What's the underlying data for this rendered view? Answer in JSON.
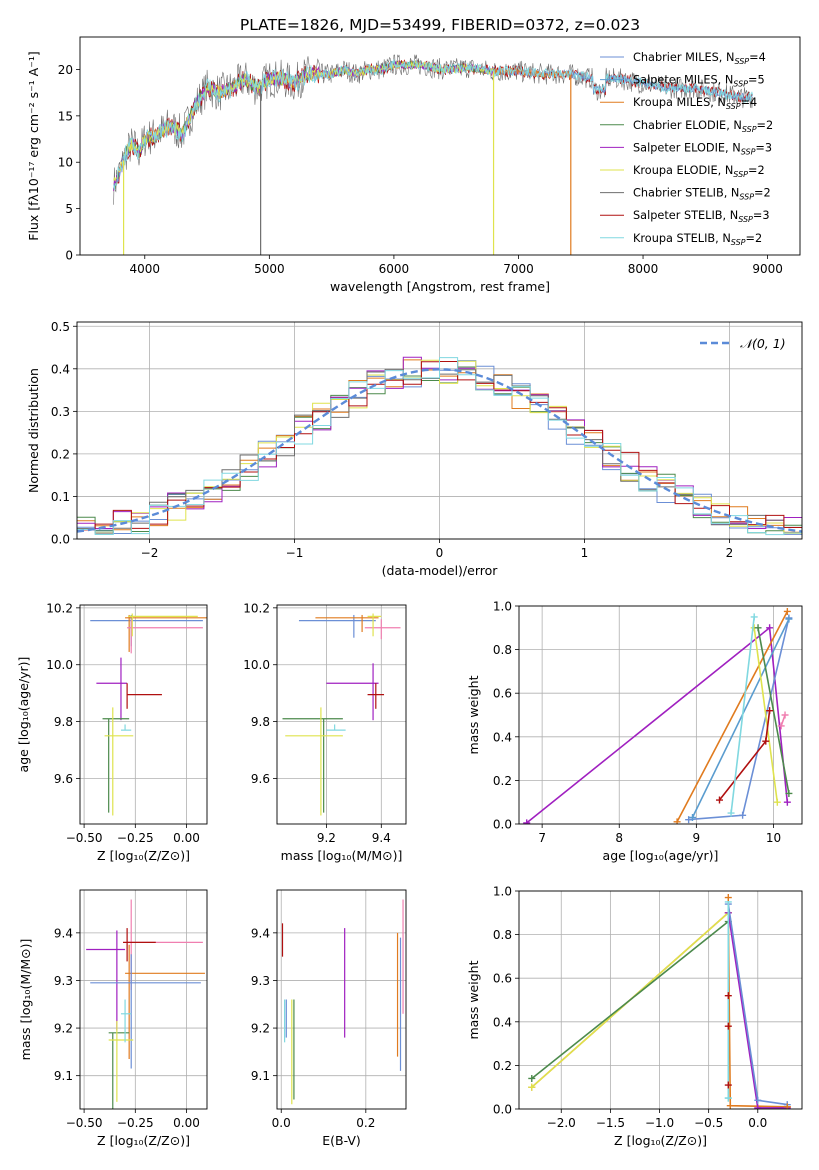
{
  "title": "PLATE=1826, MJD=53499, FIBERID=0372, z=0.023",
  "colors": {
    "Chabrier MILES": "#6b8fd6",
    "Salpeter MILES": "#5a9ccf",
    "Kroupa MILES": "#e07b1f",
    "Chabrier ELODIE": "#4c8a4c",
    "Salpeter ELODIE": "#a020c0",
    "Kroupa ELODIE": "#dfe34d",
    "Chabrier STELIB": "#6e6e6e",
    "Salpeter STELIB": "#b01010",
    "Kroupa STELIB": "#80d8e0",
    "pink": "#f07fb0",
    "gauss": "#5b8bd8"
  },
  "chart_data": [
    {
      "id": "spectrum",
      "type": "line",
      "xlabel": "wavelength [Angstrom, rest frame]",
      "ylabel": "Flux [fλ10⁻¹⁷ erg cm⁻² s⁻¹ A⁻¹]",
      "xlim": [
        3480,
        9260
      ],
      "ylim": [
        0,
        23.5
      ],
      "xticks": [
        4000,
        5000,
        6000,
        7000,
        8000,
        9000
      ],
      "yticks": [
        0,
        5,
        10,
        15,
        20
      ],
      "legend_position": "top-right",
      "envelope": {
        "x": [
          3750,
          3800,
          3850,
          3900,
          3950,
          4000,
          4100,
          4200,
          4300,
          4400,
          4500,
          4600,
          4700,
          4800,
          4900,
          5000,
          5100,
          5200,
          5300,
          5400,
          5500,
          5600,
          5700,
          5800,
          5900,
          6000,
          6200,
          6400,
          6600,
          6800,
          7000,
          7200,
          7400,
          7600,
          7800,
          8000,
          8200,
          8400,
          8600,
          8800
        ],
        "y": [
          7.5,
          9,
          11,
          12,
          11,
          12.5,
          13,
          14,
          13,
          16,
          18,
          17.5,
          18,
          19,
          18,
          19,
          19,
          18.5,
          19.5,
          19.5,
          19.5,
          20,
          19.5,
          20,
          20,
          20.5,
          20.5,
          20,
          20.2,
          19.8,
          19.8,
          19.5,
          19.5,
          19,
          19,
          18.5,
          18,
          18,
          17.5,
          17
        ]
      },
      "legend": [
        {
          "label": "Chabrier MILES, N",
          "sub": "SSP",
          "n": "=4"
        },
        {
          "label": "Salpeter MILES, N",
          "sub": "SSP",
          "n": "=5"
        },
        {
          "label": "Kroupa MILES, N",
          "sub": "SSP",
          "n": "=4"
        },
        {
          "label": "Chabrier ELODIE, N",
          "sub": "SSP",
          "n": "=2"
        },
        {
          "label": "Salpeter ELODIE, N",
          "sub": "SSP",
          "n": "=3"
        },
        {
          "label": "Kroupa ELODIE, N",
          "sub": "SSP",
          "n": "=2"
        },
        {
          "label": "Chabrier STELIB, N",
          "sub": "SSP",
          "n": "=2"
        },
        {
          "label": "Salpeter STELIB, N",
          "sub": "SSP",
          "n": "=3"
        },
        {
          "label": "Kroupa STELIB, N",
          "sub": "SSP",
          "n": "=2"
        }
      ],
      "drops": [
        {
          "x": 4930,
          "series": "Chabrier STELIB"
        },
        {
          "x": 6800,
          "series": "Kroupa ELODIE"
        },
        {
          "x": 7420,
          "series": "Kroupa MILES"
        },
        {
          "x": 3830,
          "series": "Kroupa ELODIE"
        }
      ]
    },
    {
      "id": "residuals",
      "type": "line",
      "xlabel": "(data-model)/error",
      "ylabel": "Normed distribution",
      "xlim": [
        -2.5,
        2.5
      ],
      "ylim": [
        0,
        0.51
      ],
      "xticks": [
        -2,
        -1,
        0,
        1,
        2
      ],
      "yticks": [
        0.0,
        0.1,
        0.2,
        0.3,
        0.4,
        0.5
      ],
      "legend": "𝒩(0, 1)",
      "legend_position": "top-right",
      "bins": 40,
      "series_order": [
        "Chabrier MILES",
        "Kroupa MILES",
        "Chabrier ELODIE",
        "Salpeter ELODIE",
        "Kroupa ELODIE",
        "Chabrier STELIB",
        "Salpeter STELIB",
        "Kroupa STELIB"
      ]
    },
    {
      "id": "age-vs-Z",
      "type": "scatter",
      "xlabel": "Z [log₁₀(Z/Z⊙)]",
      "ylabel": "age  [log₁₀(age/yr)]",
      "xlim": [
        -0.52,
        0.1
      ],
      "ylim": [
        9.44,
        10.21
      ],
      "xticks": [
        -0.5,
        -0.25,
        0.0
      ],
      "xticklabels": [
        "−0.50",
        "−0.25",
        "0.00"
      ],
      "yticks": [
        9.6,
        9.8,
        10.0,
        10.2
      ],
      "points": [
        {
          "series": "Chabrier MILES",
          "x": -0.27,
          "y": 10.155,
          "xerr": [
            0.2,
            0.35
          ],
          "yerr": [
            0.09,
            0.02
          ]
        },
        {
          "series": "Kroupa MILES",
          "x": -0.28,
          "y": 10.165,
          "xerr": [
            0.02,
            0.38
          ],
          "yerr": [
            0.12,
            0.01
          ]
        },
        {
          "series": "pink",
          "x": -0.27,
          "y": 10.13,
          "xerr": [
            0.02,
            0.35
          ],
          "yerr": [
            0.09,
            0.03
          ]
        },
        {
          "series": "Kroupa ELODIE",
          "x": -0.265,
          "y": 10.17,
          "xerr": [
            0.02,
            0.32
          ],
          "yerr": [
            0.07,
            0.01
          ]
        },
        {
          "series": "Salpeter ELODIE",
          "x": -0.32,
          "y": 9.935,
          "xerr": [
            0.12,
            0.03
          ],
          "yerr": [
            0.13,
            0.09
          ]
        },
        {
          "series": "Salpeter STELIB",
          "x": -0.29,
          "y": 9.895,
          "xerr": [
            0.0,
            0.17
          ],
          "yerr": [
            0.05,
            0.04
          ]
        },
        {
          "series": "Chabrier ELODIE",
          "x": -0.38,
          "y": 9.81,
          "xerr": [
            0.03,
            0.1
          ],
          "yerr": [
            0.33,
            0.0
          ]
        },
        {
          "series": "Kroupa ELODIE",
          "x": -0.36,
          "y": 9.75,
          "xerr": [
            0.04,
            0.1
          ],
          "yerr": [
            0.28,
            0.1
          ]
        },
        {
          "series": "Kroupa STELIB",
          "x": -0.3,
          "y": 9.77,
          "xerr": [
            0.02,
            0.03
          ],
          "yerr": [
            0.0,
            0.02
          ]
        }
      ]
    },
    {
      "id": "age-vs-mass",
      "type": "scatter",
      "xlabel": "mass [log₁₀(M/M⊙)]",
      "xlim": [
        9.02,
        9.49
      ],
      "ylim": [
        9.44,
        10.21
      ],
      "xticks": [
        9.2,
        9.4
      ],
      "yticks": [
        9.6,
        9.8,
        10.0,
        10.2
      ],
      "points": [
        {
          "series": "Chabrier MILES",
          "x": 9.3,
          "y": 10.155,
          "xerr": [
            0.2,
            0.08
          ],
          "yerr": [
            0.06,
            0.02
          ]
        },
        {
          "series": "Kroupa MILES",
          "x": 9.33,
          "y": 10.165,
          "xerr": [
            0.17,
            0.06
          ],
          "yerr": [
            0.05,
            0.01
          ]
        },
        {
          "series": "pink",
          "x": 9.4,
          "y": 10.13,
          "xerr": [
            0.06,
            0.07
          ],
          "yerr": [
            0.04,
            0.03
          ]
        },
        {
          "series": "Kroupa ELODIE",
          "x": 9.37,
          "y": 10.17,
          "xerr": [
            0.02,
            0.03
          ],
          "yerr": [
            0.07,
            0.01
          ]
        },
        {
          "series": "Salpeter ELODIE",
          "x": 9.37,
          "y": 9.935,
          "xerr": [
            0.17,
            0.02
          ],
          "yerr": [
            0.13,
            0.07
          ]
        },
        {
          "series": "Salpeter STELIB",
          "x": 9.38,
          "y": 9.895,
          "xerr": [
            0.03,
            0.03
          ],
          "yerr": [
            0.05,
            0.04
          ]
        },
        {
          "series": "Chabrier ELODIE",
          "x": 9.19,
          "y": 9.81,
          "xerr": [
            0.15,
            0.07
          ],
          "yerr": [
            0.33,
            0.0
          ]
        },
        {
          "series": "Kroupa ELODIE",
          "x": 9.18,
          "y": 9.75,
          "xerr": [
            0.13,
            0.08
          ],
          "yerr": [
            0.28,
            0.1
          ]
        },
        {
          "series": "Kroupa STELIB",
          "x": 9.23,
          "y": 9.77,
          "xerr": [
            0.03,
            0.04
          ],
          "yerr": [
            0.0,
            0.02
          ]
        }
      ]
    },
    {
      "id": "weight-vs-age",
      "type": "line",
      "xlabel": "age  [log₁₀(age/yr)]",
      "ylabel": "mass weight",
      "xlim": [
        6.7,
        10.37
      ],
      "ylim": [
        0.0,
        1.0
      ],
      "xticks": [
        7,
        8,
        9,
        10
      ],
      "yticks": [
        0.0,
        0.2,
        0.4,
        0.6,
        0.8,
        1.0
      ],
      "series": [
        {
          "name": "Salpeter ELODIE",
          "x": [
            6.8,
            9.95,
            10.18
          ],
          "y": [
            0.005,
            0.9,
            0.1
          ]
        },
        {
          "name": "Kroupa MILES",
          "x": [
            8.75,
            10.18
          ],
          "y": [
            0.01,
            0.975
          ]
        },
        {
          "name": "Chabrier MILES",
          "x": [
            8.9,
            9.6,
            10.2
          ],
          "y": [
            0.02,
            0.04,
            0.945
          ]
        },
        {
          "name": "Salpeter MILES",
          "x": [
            8.95,
            10.2
          ],
          "y": [
            0.03,
            0.94
          ]
        },
        {
          "name": "Kroupa ELODIE",
          "x": [
            9.75,
            10.05
          ],
          "y": [
            0.9,
            0.1
          ]
        },
        {
          "name": "Chabrier ELODIE",
          "x": [
            9.8,
            10.2
          ],
          "y": [
            0.9,
            0.14
          ]
        },
        {
          "name": "Salpeter STELIB",
          "x": [
            9.3,
            9.9,
            9.95
          ],
          "y": [
            0.11,
            0.38,
            0.52
          ]
        },
        {
          "name": "pink",
          "x": [
            10.1,
            10.15
          ],
          "y": [
            0.45,
            0.5
          ]
        },
        {
          "name": "Kroupa STELIB",
          "x": [
            9.45,
            9.75
          ],
          "y": [
            0.05,
            0.95
          ]
        }
      ]
    },
    {
      "id": "mass-vs-Z",
      "type": "scatter",
      "xlabel": "Z [log₁₀(Z/Z⊙)]",
      "ylabel": "mass [log₁₀(M/M⊙)]",
      "xlim": [
        -0.52,
        0.1
      ],
      "ylim": [
        9.03,
        9.49
      ],
      "xticks": [
        -0.5,
        -0.25,
        0.0
      ],
      "xticklabels": [
        "−0.50",
        "−0.25",
        "0.00"
      ],
      "yticks": [
        9.1,
        9.2,
        9.3,
        9.4
      ],
      "points": [
        {
          "series": "pink",
          "x": -0.27,
          "y": 9.38,
          "xerr": [
            0.02,
            0.35
          ],
          "yerr": [
            0.1,
            0.09
          ]
        },
        {
          "series": "Salpeter STELIB",
          "x": -0.29,
          "y": 9.38,
          "xerr": [
            0.02,
            0.14
          ],
          "yerr": [
            0.04,
            0.03
          ]
        },
        {
          "series": "Salpeter ELODIE",
          "x": -0.34,
          "y": 9.365,
          "xerr": [
            0.15,
            0.04
          ],
          "yerr": [
            0.17,
            0.04
          ]
        },
        {
          "series": "Kroupa MILES",
          "x": -0.28,
          "y": 9.315,
          "xerr": [
            0.02,
            0.37
          ],
          "yerr": [
            0.18,
            0.06
          ]
        },
        {
          "series": "Chabrier MILES",
          "x": -0.27,
          "y": 9.295,
          "xerr": [
            0.2,
            0.34
          ],
          "yerr": [
            0.18,
            0.06
          ]
        },
        {
          "series": "Chabrier ELODIE",
          "x": -0.36,
          "y": 9.19,
          "xerr": [
            0.02,
            0.08
          ],
          "yerr": [
            0.16,
            0.0
          ]
        },
        {
          "series": "Kroupa ELODIE",
          "x": -0.34,
          "y": 9.175,
          "xerr": [
            0.04,
            0.08
          ],
          "yerr": [
            0.13,
            0.04
          ]
        },
        {
          "series": "Kroupa STELIB",
          "x": -0.3,
          "y": 9.23,
          "xerr": [
            0.02,
            0.03
          ],
          "yerr": [
            0.06,
            0.03
          ]
        }
      ]
    },
    {
      "id": "mass-vs-ebv",
      "type": "scatter",
      "xlabel": "E(B-V)",
      "xlim": [
        -0.01,
        0.295
      ],
      "ylim": [
        9.03,
        9.49
      ],
      "xticks": [
        0.0,
        0.2
      ],
      "yticks": [
        9.1,
        9.2,
        9.3,
        9.4
      ],
      "points": [
        {
          "series": "Salpeter STELIB",
          "x": 0.003,
          "y": 9.39,
          "xerr": [
            0,
            0
          ],
          "yerr": [
            0.04,
            0.03
          ]
        },
        {
          "series": "Kroupa STELIB",
          "x": 0.008,
          "y": 9.22,
          "xerr": [
            0,
            0
          ],
          "yerr": [
            0.05,
            0.04
          ]
        },
        {
          "series": "Chabrier MILES",
          "x": 0.012,
          "y": 9.22,
          "xerr": [
            0,
            0
          ],
          "yerr": [
            0.04,
            0.04
          ]
        },
        {
          "series": "Kroupa ELODIE",
          "x": 0.025,
          "y": 9.16,
          "xerr": [
            0,
            0
          ],
          "yerr": [
            0.12,
            0.1
          ]
        },
        {
          "series": "Chabrier ELODIE",
          "x": 0.03,
          "y": 9.16,
          "xerr": [
            0,
            0
          ],
          "yerr": [
            0.11,
            0.1
          ]
        },
        {
          "series": "Salpeter ELODIE",
          "x": 0.15,
          "y": 9.3,
          "xerr": [
            0,
            0
          ],
          "yerr": [
            0.12,
            0.11
          ]
        },
        {
          "series": "Kroupa MILES",
          "x": 0.275,
          "y": 9.27,
          "xerr": [
            0,
            0
          ],
          "yerr": [
            0.13,
            0.13
          ]
        },
        {
          "series": "Chabrier MILES",
          "x": 0.282,
          "y": 9.25,
          "xerr": [
            0,
            0
          ],
          "yerr": [
            0.14,
            0.14
          ]
        },
        {
          "series": "pink",
          "x": 0.288,
          "y": 9.35,
          "xerr": [
            0,
            0
          ],
          "yerr": [
            0.12,
            0.12
          ]
        }
      ]
    },
    {
      "id": "weight-vs-Z",
      "type": "line",
      "xlabel": "Z [log₁₀(Z/Z⊙)]",
      "ylabel": "mass weight",
      "xlim": [
        -2.43,
        0.45
      ],
      "ylim": [
        0.0,
        1.0
      ],
      "xticks": [
        -2.0,
        -1.5,
        -1.0,
        -0.5,
        0.0
      ],
      "xticklabels": [
        "−2.0",
        "−1.5",
        "−1.0",
        "−0.5",
        "0.0"
      ],
      "yticks": [
        0.0,
        0.2,
        0.4,
        0.6,
        0.8,
        1.0
      ],
      "series": [
        {
          "name": "Kroupa MILES",
          "x": [
            -2.3,
            -0.3,
            -0.28,
            0.3
          ],
          "y": [
            0.1,
            0.9,
            0.015,
            0.01
          ]
        },
        {
          "name": "Kroupa ELODIE",
          "x": [
            -2.3,
            -0.3
          ],
          "y": [
            0.1,
            0.9
          ]
        },
        {
          "name": "Chabrier ELODIE",
          "x": [
            -2.3,
            -0.3
          ],
          "y": [
            0.14,
            0.86
          ]
        },
        {
          "name": "Salpeter ELODIE",
          "x": [
            -0.3,
            0.0,
            0.3
          ],
          "y": [
            0.9,
            0.005,
            0.005
          ]
        },
        {
          "name": "Chabrier MILES",
          "x": [
            -0.3,
            0.0,
            0.3
          ],
          "y": [
            0.94,
            0.04,
            0.02
          ]
        },
        {
          "name": "Kroupa STELIB",
          "x": [
            -0.3,
            -0.3
          ],
          "y": [
            0.05,
            0.95
          ]
        }
      ],
      "markers": [
        {
          "series": "Kroupa MILES",
          "x": -0.3,
          "y": 0.97
        },
        {
          "series": "Salpeter STELIB",
          "x": -0.3,
          "y": 0.52
        },
        {
          "series": "Salpeter STELIB",
          "x": -0.3,
          "y": 0.38
        },
        {
          "series": "Salpeter STELIB",
          "x": -0.3,
          "y": 0.11
        },
        {
          "series": "Kroupa STELIB",
          "x": -0.3,
          "y": 0.05
        },
        {
          "series": "Kroupa MILES",
          "x": 0.3,
          "y": 0.01
        }
      ]
    }
  ]
}
